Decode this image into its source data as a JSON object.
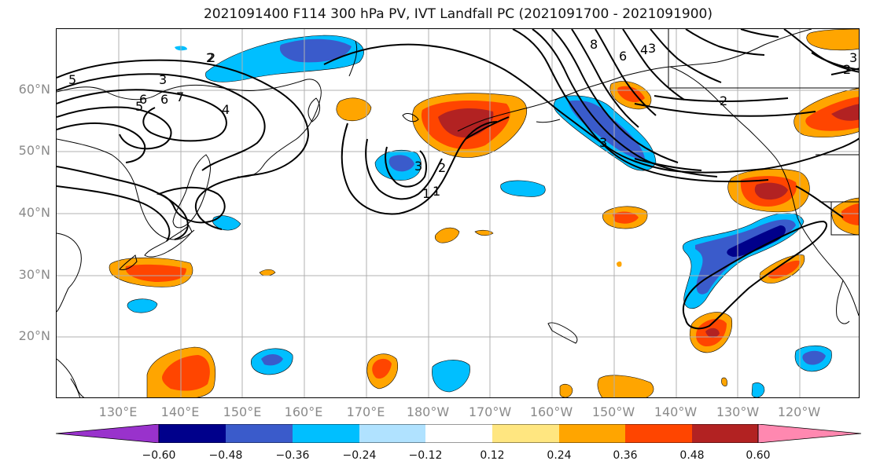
{
  "title": "2021091400 F114 300 hPa PV, IVT Landfall PC (2021091700 - 2021091900)",
  "lat_labels": [
    "60°N",
    "50°N",
    "40°N",
    "30°N",
    "20°N"
  ],
  "lon_labels": [
    "130°E",
    "140°E",
    "150°E",
    "160°E",
    "170°E",
    "180°W",
    "170°W",
    "160°W",
    "150°W",
    "140°W",
    "130°W",
    "120°W"
  ],
  "colorbar": {
    "ticks": [
      "−0.60",
      "−0.48",
      "−0.36",
      "−0.24",
      "−0.12",
      "0.12",
      "0.24",
      "0.36",
      "0.48",
      "0.60"
    ],
    "colors": [
      "#9932cc",
      "#00008b",
      "#3a5bcb",
      "#00bfff",
      "#b0e2ff",
      "#ffffff",
      "#ffe680",
      "#ffa500",
      "#ff4500",
      "#b22222",
      "#ff88b0"
    ]
  },
  "contour_labels": [
    "5",
    "3",
    "2",
    "6",
    "7",
    "4",
    "3",
    "2",
    "1",
    "5",
    "8",
    "6",
    "4",
    "3",
    "2",
    "3",
    "2",
    "1",
    "2",
    "3",
    "6"
  ],
  "palette": {
    "land": "#000000",
    "grid": "#b0b0b0",
    "contour": "#000000"
  }
}
